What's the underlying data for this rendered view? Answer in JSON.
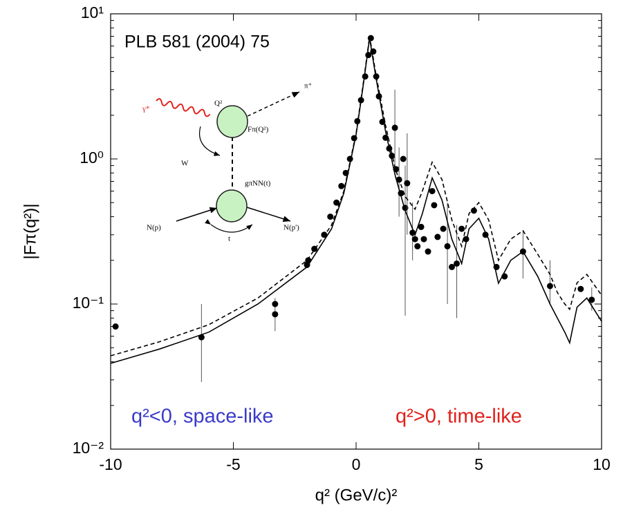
{
  "chart_data": {
    "type": "scatter",
    "annotations": {
      "reference": "PLB 581 (2004) 75",
      "space_like": "q²<0, space-like",
      "time_like": "q²>0, time-like",
      "space_like_color": "#3a3ac8",
      "time_like_color": "#e0201a"
    },
    "xlabel": "q² (GeV/c)²",
    "ylabel": "|Fπ(q²)|",
    "xlim": [
      -10,
      10
    ],
    "ylim": [
      0.01,
      10
    ],
    "ylog": true,
    "grid": false,
    "xticks": [
      -10,
      -5,
      0,
      5,
      10
    ],
    "yticks": [
      {
        "value": 0.01,
        "label": "10⁻²"
      },
      {
        "value": 0.1,
        "label": "10⁻¹"
      },
      {
        "value": 1,
        "label": "10⁰"
      },
      {
        "value": 10,
        "label": "10¹"
      }
    ],
    "inset": {
      "photon": "γ*",
      "q2": "Q²",
      "pion": "π⁺",
      "form_factor": "Fπ(Q²)",
      "w": "W",
      "coupling": "gπNN(t)",
      "n_in": "N(p)",
      "t": "t",
      "n_out": "N(p')"
    },
    "series": [
      {
        "type": "scatter",
        "color": "#000000",
        "x": [
          -9.8,
          -6.3,
          -3.3,
          -3.3,
          -2.0,
          -1.95,
          -1.7,
          -1.3,
          -1.05,
          -0.8,
          -0.6,
          -0.42,
          -0.25,
          -0.08,
          0.05,
          0.2,
          0.37,
          0.5,
          0.6,
          0.7,
          0.82,
          0.93,
          1.07,
          1.2,
          1.35,
          1.46,
          1.58,
          1.63,
          1.75,
          1.83,
          1.92,
          2.0,
          2.08,
          2.3,
          2.4,
          2.5,
          2.65,
          2.76,
          2.93,
          3.1,
          3.18,
          3.32,
          3.55,
          3.72,
          3.9,
          4.1,
          4.3,
          4.48,
          4.8,
          5.27,
          5.72,
          6.05,
          6.8,
          7.9,
          9.15,
          9.6
        ],
        "values": [
          0.07,
          0.059,
          0.085,
          0.1,
          0.186,
          0.2,
          0.24,
          0.3,
          0.4,
          0.5,
          0.65,
          0.8,
          1.0,
          1.39,
          1.82,
          2.54,
          3.7,
          5.2,
          6.8,
          5.5,
          3.7,
          2.7,
          1.8,
          1.4,
          1.18,
          1.05,
          1.64,
          0.85,
          0.72,
          0.58,
          1.0,
          0.46,
          0.68,
          0.31,
          0.28,
          0.25,
          0.34,
          0.28,
          0.23,
          0.6,
          0.48,
          0.29,
          0.33,
          0.25,
          0.18,
          0.19,
          0.33,
          0.28,
          0.44,
          0.3,
          0.18,
          0.155,
          0.23,
          0.133,
          0.127,
          0.107
        ],
        "error_lo": [
          null,
          0.029,
          0.065,
          null,
          null,
          null,
          null,
          null,
          null,
          null,
          null,
          null,
          null,
          null,
          null,
          null,
          null,
          null,
          null,
          null,
          null,
          null,
          null,
          null,
          null,
          null,
          0.8,
          null,
          0.4,
          null,
          null,
          0.083,
          0.3,
          0.2,
          null,
          null,
          null,
          null,
          null,
          null,
          null,
          null,
          null,
          0.1,
          null,
          0.08,
          null,
          null,
          null,
          null,
          null,
          null,
          0.15,
          0.1,
          null,
          0.09
        ],
        "error_hi": [
          null,
          0.1,
          0.11,
          null,
          null,
          null,
          null,
          null,
          null,
          null,
          null,
          null,
          null,
          null,
          null,
          null,
          null,
          null,
          null,
          null,
          null,
          null,
          null,
          null,
          null,
          null,
          3.0,
          null,
          1.2,
          null,
          null,
          0.9,
          1.5,
          0.5,
          null,
          null,
          null,
          null,
          null,
          null,
          null,
          null,
          null,
          0.5,
          null,
          0.35,
          null,
          null,
          null,
          null,
          null,
          null,
          0.32,
          0.2,
          null,
          0.13
        ]
      },
      {
        "type": "line",
        "color": "#000000",
        "linestyle": "solid",
        "x": [
          -10,
          -8,
          -6,
          -4,
          -2,
          -1,
          -0.5,
          0,
          0.3,
          0.55,
          0.8,
          1.2,
          1.6,
          2.0,
          2.4,
          2.7,
          3.1,
          3.5,
          3.9,
          4.3,
          4.6,
          5.0,
          5.4,
          5.8,
          6.3,
          6.8,
          7.4,
          7.9,
          8.2,
          8.5,
          8.7,
          9.0,
          9.4,
          10
        ],
        "values": [
          0.039,
          0.049,
          0.064,
          0.1,
          0.18,
          0.33,
          0.58,
          1.47,
          3.3,
          6.8,
          3.7,
          1.55,
          0.76,
          0.44,
          0.3,
          0.42,
          0.74,
          0.52,
          0.28,
          0.19,
          0.33,
          0.39,
          0.28,
          0.139,
          0.2,
          0.23,
          0.155,
          0.1,
          0.08,
          0.064,
          0.054,
          0.095,
          0.11,
          0.076
        ]
      },
      {
        "type": "line",
        "color": "#000000",
        "linestyle": "dashed",
        "x": [
          -10,
          -8,
          -6,
          -4,
          -2,
          -1,
          -0.5,
          0,
          0.3,
          0.55,
          0.8,
          1.2,
          1.6,
          2.0,
          2.4,
          2.7,
          3.1,
          3.5,
          3.9,
          4.3,
          4.6,
          5.0,
          5.4,
          5.8,
          6.3,
          6.8,
          7.4,
          7.9,
          8.2,
          8.5,
          8.7,
          9.0,
          9.4,
          10
        ],
        "values": [
          0.044,
          0.055,
          0.072,
          0.11,
          0.2,
          0.35,
          0.6,
          1.5,
          3.4,
          7.0,
          3.9,
          1.7,
          0.85,
          0.55,
          0.45,
          0.6,
          0.95,
          0.72,
          0.38,
          0.25,
          0.42,
          0.5,
          0.38,
          0.2,
          0.28,
          0.32,
          0.22,
          0.16,
          0.12,
          0.1,
          0.092,
          0.14,
          0.16,
          0.115
        ]
      }
    ]
  }
}
